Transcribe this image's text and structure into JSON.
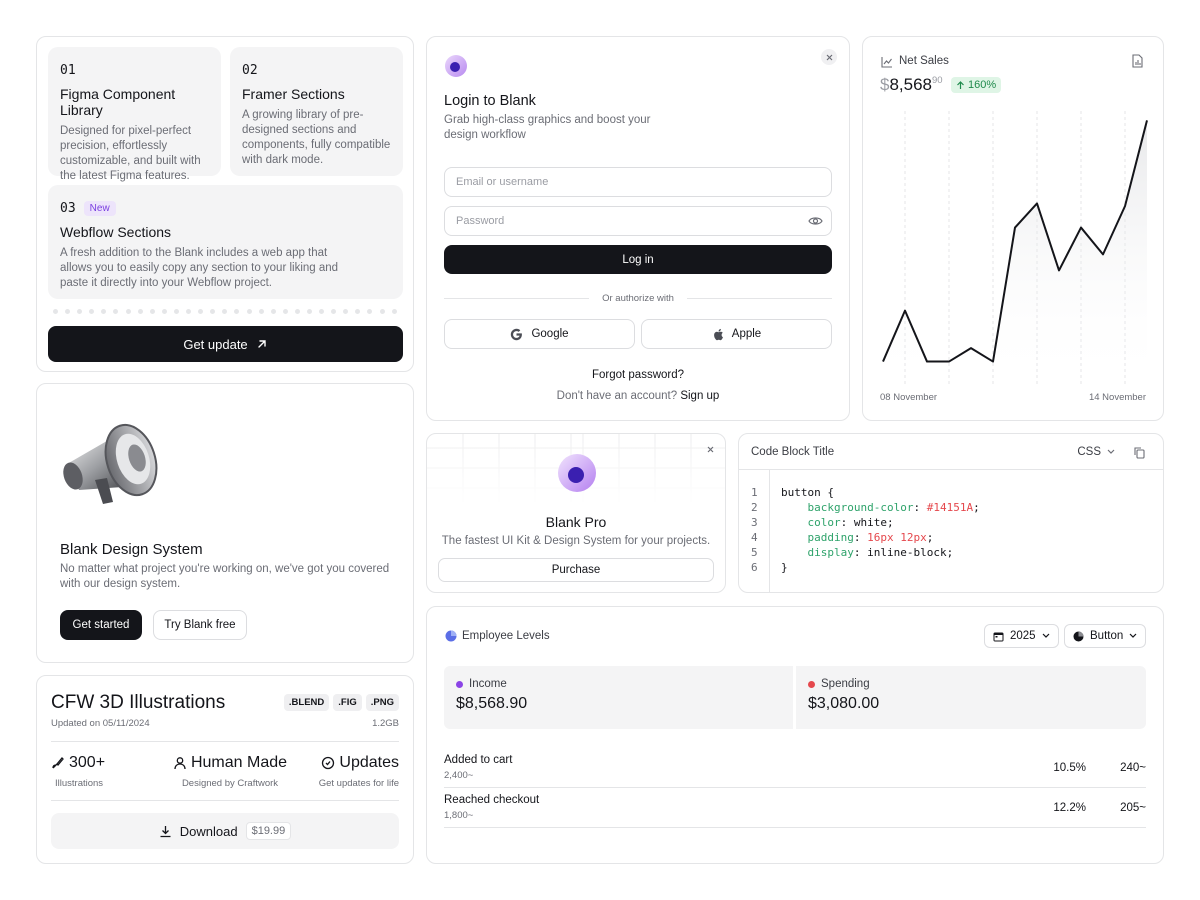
{
  "features": {
    "items": [
      {
        "num": "01",
        "title": "Figma Component Library",
        "desc": "Designed for pixel-perfect precision, effortlessly customizable, and built with the latest Figma features."
      },
      {
        "num": "02",
        "title": "Framer Sections",
        "desc": "A growing library of pre-designed sections and components, fully compatible with dark mode."
      },
      {
        "num": "03",
        "badge": "New",
        "title": "Webflow Sections",
        "desc": "A fresh addition to the Blank includes a web app that allows you to easily copy any section to your liking and paste it directly into your Webflow project."
      }
    ],
    "button_label": "Get update"
  },
  "design_system": {
    "title": "Blank Design System",
    "desc": "No matter what project you're working on, we've got you covered with our design system.",
    "primary_label": "Get started",
    "secondary_label": "Try Blank free"
  },
  "illustrations": {
    "title": "CFW 3D Illustrations",
    "updated": "Updated on 05/11/2024",
    "tags": [
      ".BLEND",
      ".FIG",
      ".PNG"
    ],
    "size": "1.2GB",
    "stats": [
      {
        "value": "300+",
        "label": "Illustrations",
        "icon": "brush-icon"
      },
      {
        "value": "Human Made",
        "label": "Designed by Craftwork",
        "icon": "person-icon"
      },
      {
        "value": "Updates",
        "label": "Get updates for life",
        "icon": "clock-icon"
      }
    ],
    "download_label": "Download",
    "price": "$19.99"
  },
  "login": {
    "title": "Login to Blank",
    "subtitle": "Grab high-class graphics and boost your design workflow",
    "email_placeholder": "Email or username",
    "password_placeholder": "Password",
    "login_label": "Log in",
    "divider_text": "Or authorize with",
    "google_label": "Google",
    "apple_label": "Apple",
    "forgot_label": "Forgot password?",
    "no_account_text": "Don't have an account?",
    "signup_label": "Sign up"
  },
  "sales": {
    "title": "Net Sales",
    "currency": "$",
    "amount": "8,568",
    "cents": "90",
    "change": "160%",
    "start_label": "08 November",
    "end_label": "14 November"
  },
  "chart_data": {
    "type": "area",
    "title": "Net Sales",
    "x": [
      "08 November",
      "",
      "",
      "",
      "",
      "",
      "",
      "",
      "",
      "",
      "",
      "",
      "14 November"
    ],
    "values": [
      8,
      27,
      8,
      8,
      13,
      8,
      58,
      67,
      42,
      58,
      48,
      66,
      98
    ],
    "ylim": [
      0,
      100
    ],
    "xlabel": "",
    "ylabel": "",
    "grid": true,
    "colors": {
      "line": "#14151a"
    }
  },
  "pro": {
    "title": "Blank Pro",
    "subtitle": "The fastest UI Kit & Design System for your projects.",
    "button_label": "Purchase"
  },
  "code": {
    "title": "Code Block Title",
    "language": "CSS",
    "line_numbers": [
      "1",
      "2",
      "3",
      "4",
      "5",
      "6"
    ]
  },
  "employee": {
    "title": "Employee Levels",
    "year": "2025",
    "button_label": "Button",
    "income_label": "Income",
    "income_value": "$8,568.90",
    "spending_label": "Spending",
    "spending_value": "$3,080.00",
    "rows": [
      {
        "name": "Added to cart",
        "sub": "2,400~",
        "pct": "10.5%",
        "count": "240~"
      },
      {
        "name": "Reached checkout",
        "sub": "1,800~",
        "pct": "12.2%",
        "count": "205~"
      }
    ],
    "colors": {
      "income": "#8b44e6",
      "spending": "#e5484d"
    }
  }
}
